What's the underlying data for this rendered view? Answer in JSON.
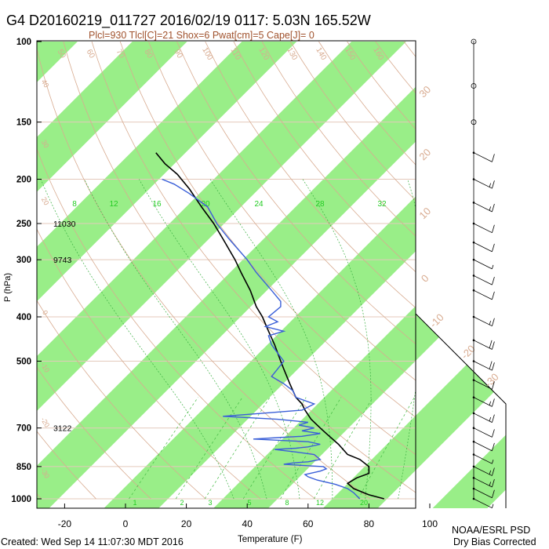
{
  "chart_data": {
    "type": "skew-t",
    "title": "G4 D20160219_011727 2016/02/19 0117:  5.03N 165.52W",
    "subtitle": "Plcl=930 Tlcl[C]=21 Shox=6 Pwat[cm]=5 Cape[J]= 0",
    "xlabel": "Temperature (F)",
    "ylabel": "P (hPa)",
    "x_ticks": [
      "-20",
      "0",
      "20",
      "40",
      "60",
      "80",
      "100"
    ],
    "y_ticks": [
      "100",
      "150",
      "200",
      "250",
      "300",
      "400",
      "500",
      "700",
      "850",
      "1000"
    ],
    "xlim_F": [
      -28,
      100
    ],
    "ylim_hPa": [
      1000,
      100
    ],
    "height_labels": [
      {
        "p": 250,
        "text": "11030"
      },
      {
        "p": 300,
        "text": "9743"
      },
      {
        "p": 700,
        "text": "3122"
      }
    ],
    "mixing_ratio_labels": [
      "8",
      "12",
      "16",
      "20",
      "24",
      "28",
      "32"
    ],
    "mixing_ratio_bottom_labels": [
      "1",
      "2",
      "3",
      "5",
      "8",
      "12",
      "20"
    ],
    "isotherm_labels_C": [
      "30",
      "20",
      "10",
      "0",
      "-10",
      "-20",
      "-30",
      "-40"
    ],
    "theta_labels": [
      "50",
      "60",
      "70",
      "80",
      "90",
      "100",
      "110",
      "120",
      "130",
      "140",
      "150",
      "160"
    ],
    "theta_left_labels": [
      "40",
      "30",
      "20",
      "0",
      "-10",
      "-20",
      "-30"
    ],
    "series": [
      {
        "kind": "temperature",
        "color": "#000000",
        "points": [
          [
            1000,
            85
          ],
          [
            980,
            80
          ],
          [
            950,
            75
          ],
          [
            925,
            73
          ],
          [
            900,
            76
          ],
          [
            880,
            80
          ],
          [
            850,
            80
          ],
          [
            820,
            77
          ],
          [
            800,
            73
          ],
          [
            760,
            70
          ],
          [
            720,
            66
          ],
          [
            700,
            64
          ],
          [
            670,
            61
          ],
          [
            640,
            59
          ],
          [
            620,
            58
          ],
          [
            600,
            56
          ],
          [
            560,
            54
          ],
          [
            520,
            52
          ],
          [
            500,
            51
          ],
          [
            460,
            49
          ],
          [
            430,
            47
          ],
          [
            400,
            45
          ],
          [
            380,
            43
          ],
          [
            350,
            41
          ],
          [
            320,
            38
          ],
          [
            300,
            36
          ],
          [
            270,
            32
          ],
          [
            250,
            29
          ],
          [
            230,
            25
          ],
          [
            210,
            21
          ],
          [
            195,
            17
          ],
          [
            185,
            13
          ],
          [
            175,
            10
          ]
        ]
      },
      {
        "kind": "dewpoint",
        "color": "#3a5fd8",
        "points": [
          [
            1000,
            77
          ],
          [
            985,
            76
          ],
          [
            970,
            75
          ],
          [
            950,
            73
          ],
          [
            930,
            69
          ],
          [
            910,
            63
          ],
          [
            895,
            60
          ],
          [
            885,
            59
          ],
          [
            870,
            64
          ],
          [
            860,
            66
          ],
          [
            850,
            65
          ],
          [
            845,
            58
          ],
          [
            840,
            52
          ],
          [
            835,
            55
          ],
          [
            830,
            60
          ],
          [
            820,
            64
          ],
          [
            800,
            62
          ],
          [
            790,
            56
          ],
          [
            780,
            49
          ],
          [
            775,
            56
          ],
          [
            770,
            60
          ],
          [
            760,
            64
          ],
          [
            750,
            60
          ],
          [
            740,
            42
          ],
          [
            735,
            50
          ],
          [
            730,
            58
          ],
          [
            720,
            64
          ],
          [
            710,
            58
          ],
          [
            700,
            62
          ],
          [
            690,
            57
          ],
          [
            680,
            60
          ],
          [
            670,
            50
          ],
          [
            660,
            32
          ],
          [
            650,
            45
          ],
          [
            640,
            58
          ],
          [
            630,
            60
          ],
          [
            620,
            62
          ],
          [
            600,
            56
          ],
          [
            580,
            55
          ],
          [
            560,
            52
          ],
          [
            540,
            48
          ],
          [
            520,
            50
          ],
          [
            500,
            52
          ],
          [
            480,
            50
          ],
          [
            460,
            48
          ],
          [
            440,
            47
          ],
          [
            430,
            52
          ],
          [
            420,
            46
          ],
          [
            410,
            50
          ],
          [
            400,
            47
          ],
          [
            390,
            49
          ],
          [
            380,
            51
          ],
          [
            370,
            51
          ],
          [
            350,
            48
          ],
          [
            320,
            43
          ],
          [
            300,
            40
          ],
          [
            270,
            34
          ],
          [
            250,
            30
          ],
          [
            230,
            27
          ],
          [
            215,
            21
          ],
          [
            205,
            16
          ],
          [
            200,
            12
          ]
        ]
      }
    ],
    "wind_barbs": {
      "pressures": [
        100,
        125,
        150,
        175,
        200,
        225,
        250,
        275,
        300,
        325,
        350,
        400,
        450,
        500,
        550,
        600,
        650,
        700,
        750,
        800,
        850,
        900,
        950,
        1000
      ],
      "speed_kt": [
        0,
        0,
        0,
        10,
        15,
        15,
        10,
        10,
        5,
        10,
        10,
        15,
        20,
        20,
        10,
        15,
        15,
        10,
        10,
        5,
        15,
        15,
        10,
        5
      ]
    },
    "footer_left": "Created: Wed Sep 14 11:07:30 MDT 2016",
    "footer_right_1": "NOAA/ESRL PSD",
    "footer_right_2": "Dry Bias Corrected"
  }
}
